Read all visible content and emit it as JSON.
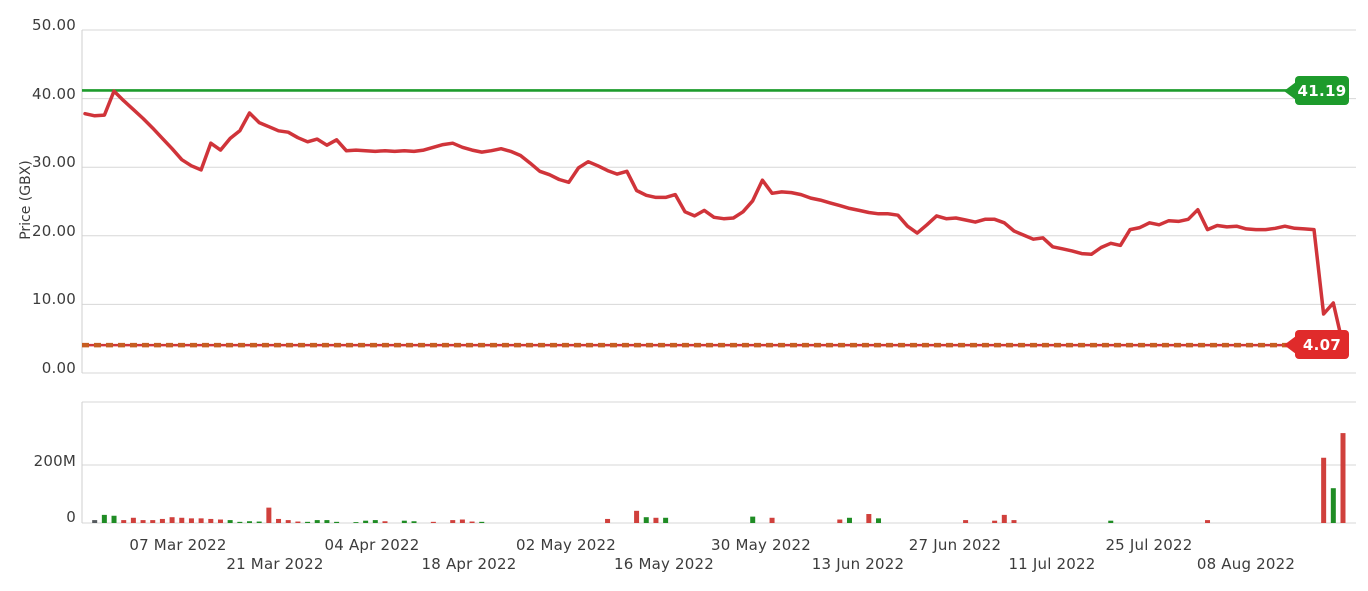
{
  "chart_data": {
    "type": "line",
    "title": "",
    "price_axis": {
      "title": "Price (GBX)",
      "ticks": [
        "50.00",
        "40.00",
        "30.00",
        "20.00",
        "10.00",
        "0.00"
      ],
      "min": 0,
      "max": 50
    },
    "volume_axis": {
      "ticks": [
        "200M",
        "0"
      ],
      "min": 0,
      "max": 420
    },
    "x_axis": {
      "ticks": [
        "07 Mar 2022",
        "21 Mar 2022",
        "04 Apr 2022",
        "18 Apr 2022",
        "02 May 2022",
        "16 May 2022",
        "30 May 2022",
        "13 Jun 2022",
        "27 Jun 2022",
        "11 Jul 2022",
        "25 Jul 2022",
        "08 Aug 2022"
      ]
    },
    "series": {
      "name": "Price",
      "color": "#d0343a",
      "values": [
        37.8,
        37.5,
        37.6,
        41.1,
        39.7,
        38.4,
        37.1,
        35.7,
        34.2,
        32.7,
        31.1,
        30.2,
        29.6,
        33.5,
        32.5,
        34.2,
        35.3,
        37.9,
        36.5,
        35.9,
        35.3,
        35.1,
        34.3,
        33.7,
        34.1,
        33.2,
        34.0,
        32.4,
        32.5,
        32.4,
        32.3,
        32.4,
        32.3,
        32.4,
        32.3,
        32.5,
        32.9,
        33.3,
        33.5,
        32.9,
        32.5,
        32.2,
        32.4,
        32.7,
        32.3,
        31.7,
        30.6,
        29.4,
        28.9,
        28.2,
        27.8,
        29.9,
        30.8,
        30.2,
        29.5,
        29.0,
        29.4,
        26.6,
        25.9,
        25.6,
        25.6,
        26.0,
        23.5,
        22.9,
        23.7,
        22.7,
        22.5,
        22.6,
        23.5,
        25.1,
        28.1,
        26.2,
        26.4,
        26.3,
        26.0,
        25.5,
        25.2,
        24.8,
        24.4,
        24.0,
        23.7,
        23.4,
        23.2,
        23.2,
        23.0,
        21.4,
        20.4,
        21.6,
        22.9,
        22.5,
        22.6,
        22.3,
        22.0,
        22.4,
        22.4,
        21.9,
        20.7,
        20.1,
        19.5,
        19.7,
        18.4,
        18.1,
        17.8,
        17.4,
        17.3,
        18.3,
        18.9,
        18.6,
        20.9,
        21.2,
        21.9,
        21.6,
        22.2,
        22.1,
        22.4,
        23.8,
        20.9,
        21.5,
        21.3,
        21.4,
        21.0,
        20.9,
        20.9,
        21.1,
        21.4,
        21.1,
        21.0,
        20.9,
        8.6,
        10.2,
        4.07
      ]
    },
    "volume": {
      "unit": "M",
      "up_color": "#1f8c24",
      "down_color": "#d0403c",
      "neutral_color": "#555a5e",
      "values": [
        0,
        10,
        28,
        25,
        10,
        18,
        10,
        10,
        14,
        20,
        18,
        16,
        16,
        14,
        12,
        10,
        4,
        6,
        5,
        53,
        14,
        10,
        5,
        4,
        10,
        10,
        4,
        0,
        3,
        8,
        10,
        6,
        0,
        8,
        6,
        0,
        4,
        0,
        10,
        12,
        5,
        4,
        0,
        0,
        0,
        0,
        0,
        0,
        0,
        0,
        0,
        0,
        0,
        0,
        14,
        0,
        0,
        42,
        20,
        18,
        18,
        0,
        0,
        0,
        0,
        0,
        0,
        0,
        0,
        22,
        0,
        18,
        0,
        0,
        0,
        0,
        0,
        0,
        12,
        18,
        0,
        31,
        16,
        0,
        0,
        0,
        0,
        0,
        0,
        0,
        0,
        10,
        0,
        0,
        8,
        28,
        10,
        0,
        0,
        0,
        0,
        0,
        0,
        0,
        0,
        0,
        8,
        0,
        0,
        0,
        0,
        0,
        0,
        0,
        0,
        0,
        10,
        0,
        0,
        0,
        0,
        0,
        0,
        0,
        0,
        0,
        0,
        0,
        225,
        120,
        310
      ],
      "directions": [
        "-",
        "n",
        "g",
        "g",
        "r",
        "r",
        "r",
        "r",
        "r",
        "r",
        "r",
        "r",
        "r",
        "r",
        "r",
        "g",
        "g",
        "g",
        "g",
        "r",
        "r",
        "r",
        "r",
        "g",
        "g",
        "g",
        "g",
        "-",
        "g",
        "g",
        "g",
        "r",
        "-",
        "g",
        "g",
        "-",
        "r",
        "-",
        "r",
        "r",
        "r",
        "g",
        "-",
        "-",
        "-",
        "-",
        "-",
        "-",
        "-",
        "-",
        "-",
        "-",
        "-",
        "-",
        "r",
        "-",
        "-",
        "r",
        "g",
        "r",
        "g",
        "-",
        "-",
        "-",
        "-",
        "-",
        "-",
        "-",
        "-",
        "g",
        "-",
        "r",
        "-",
        "-",
        "-",
        "-",
        "-",
        "-",
        "r",
        "g",
        "-",
        "r",
        "g",
        "-",
        "-",
        "-",
        "-",
        "-",
        "-",
        "-",
        "-",
        "r",
        "-",
        "-",
        "r",
        "r",
        "r",
        "-",
        "-",
        "-",
        "-",
        "-",
        "-",
        "-",
        "-",
        "-",
        "g",
        "-",
        "-",
        "-",
        "-",
        "-",
        "-",
        "-",
        "-",
        "-",
        "r",
        "-",
        "-",
        "-",
        "-",
        "-",
        "-",
        "-",
        "-",
        "-",
        "-",
        "-",
        "r",
        "g",
        "r"
      ]
    },
    "annotations": {
      "high": {
        "label": "41.19",
        "value": 41.19,
        "color": "#1d9b2c",
        "style": "solid"
      },
      "last": {
        "label": "4.07",
        "value": 4.07,
        "color": "#c65e22",
        "underlay_color": "#d0343a",
        "badge_color": "#e02b2b",
        "style": "dashed"
      }
    },
    "colors": {
      "grid": "#d7d7d7",
      "border": "#cfcfcf",
      "text": "#3c3c3c",
      "background": "#ffffff"
    }
  }
}
